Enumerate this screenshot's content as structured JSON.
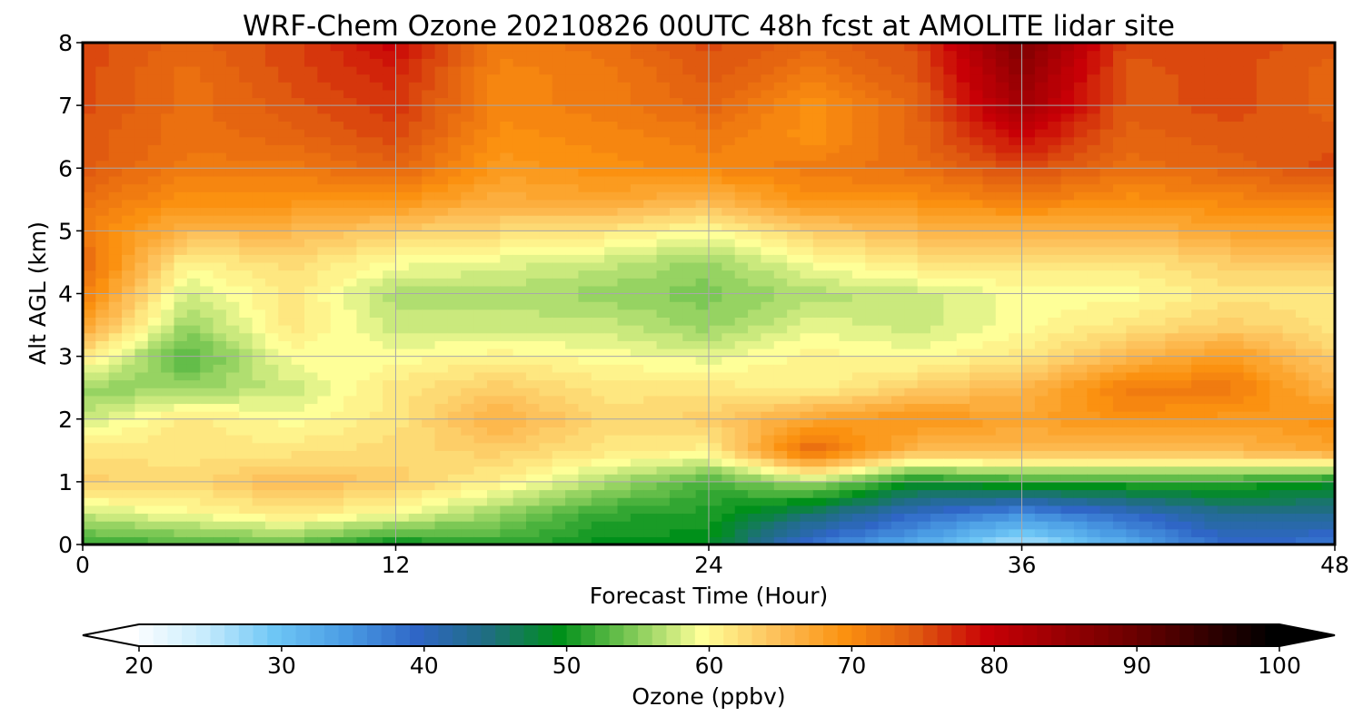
{
  "chart_data": {
    "type": "heatmap",
    "title": "WRF-Chem Ozone  20210826 00UTC 48h fcst at AMOLITE lidar site",
    "xlabel": "Forecast Time (Hour)",
    "ylabel": "Alt AGL (km)",
    "xlim": [
      0,
      48
    ],
    "ylim": [
      0,
      8
    ],
    "xticks": [
      0,
      12,
      24,
      36,
      48
    ],
    "yticks": [
      0,
      1,
      2,
      3,
      4,
      5,
      6,
      7,
      8
    ],
    "grid": true,
    "colorbar": {
      "label": "Ozone  (ppbv)",
      "min": 20,
      "max": 100,
      "ticks": [
        20,
        30,
        40,
        50,
        60,
        70,
        80,
        90,
        100
      ],
      "extend": "both",
      "colors": [
        {
          "v": 20,
          "c": "#ffffff"
        },
        {
          "v": 25,
          "c": "#c8ecfd"
        },
        {
          "v": 30,
          "c": "#6ec6f5"
        },
        {
          "v": 35,
          "c": "#4a9ce4"
        },
        {
          "v": 40,
          "c": "#2f66c6"
        },
        {
          "v": 45,
          "c": "#1f6e80"
        },
        {
          "v": 50,
          "c": "#00901a"
        },
        {
          "v": 55,
          "c": "#7cc855"
        },
        {
          "v": 60,
          "c": "#feff98"
        },
        {
          "v": 65,
          "c": "#fdc25c"
        },
        {
          "v": 70,
          "c": "#fb9110"
        },
        {
          "v": 75,
          "c": "#e05a10"
        },
        {
          "v": 80,
          "c": "#c80006"
        },
        {
          "v": 90,
          "c": "#6e0000"
        },
        {
          "v": 100,
          "c": "#000000"
        }
      ]
    },
    "x": [
      0,
      4,
      8,
      12,
      16,
      20,
      24,
      28,
      32,
      36,
      40,
      44,
      48
    ],
    "y": [
      0,
      0.5,
      1,
      1.5,
      2,
      2.5,
      3,
      3.5,
      4,
      4.5,
      5,
      5.5,
      6,
      6.5,
      7,
      7.5,
      8
    ],
    "z": [
      [
        52,
        58,
        64,
        62,
        58,
        56,
        62,
        68,
        72,
        74,
        72,
        73,
        75,
        75,
        76,
        76,
        76
      ],
      [
        53,
        60,
        63,
        62,
        62,
        56,
        53,
        56,
        58,
        61,
        66,
        70,
        72,
        73,
        73,
        73,
        74
      ],
      [
        54,
        62,
        66,
        62,
        60,
        58,
        60,
        62,
        62,
        63,
        66,
        70,
        72,
        74,
        75,
        76,
        76
      ],
      [
        50,
        60,
        64,
        63,
        62,
        62,
        60,
        58,
        57,
        60,
        64,
        70,
        74,
        76,
        77,
        78,
        80
      ],
      [
        52,
        56,
        61,
        64,
        67,
        64,
        61,
        58,
        57,
        59,
        63,
        67,
        69,
        70,
        71,
        71,
        72
      ],
      [
        50,
        52,
        57,
        62,
        63,
        62,
        60,
        58,
        56,
        58,
        62,
        68,
        70,
        71,
        72,
        72,
        73
      ],
      [
        50,
        51,
        53,
        61,
        64,
        62,
        59,
        56,
        55,
        56,
        60,
        66,
        71,
        72,
        74,
        75,
        76
      ],
      [
        38,
        46,
        57,
        74,
        68,
        61,
        61,
        59,
        57,
        60,
        64,
        70,
        72,
        70,
        70,
        72,
        74
      ],
      [
        33,
        40,
        50,
        66,
        70,
        64,
        60,
        58,
        58,
        62,
        66,
        70,
        73,
        74,
        74,
        75,
        76
      ],
      [
        26,
        36,
        52,
        66,
        68,
        66,
        62,
        60,
        60,
        62,
        66,
        72,
        76,
        80,
        84,
        86,
        88
      ],
      [
        33,
        40,
        52,
        66,
        70,
        72,
        66,
        62,
        60,
        62,
        66,
        70,
        73,
        74,
        75,
        75,
        76
      ],
      [
        40,
        44,
        52,
        66,
        69,
        72,
        69,
        64,
        62,
        64,
        68,
        71,
        74,
        75,
        76,
        76,
        76
      ],
      [
        38,
        44,
        50,
        68,
        70,
        66,
        64,
        62,
        62,
        64,
        68,
        72,
        76,
        75,
        74,
        74,
        75
      ]
    ]
  }
}
